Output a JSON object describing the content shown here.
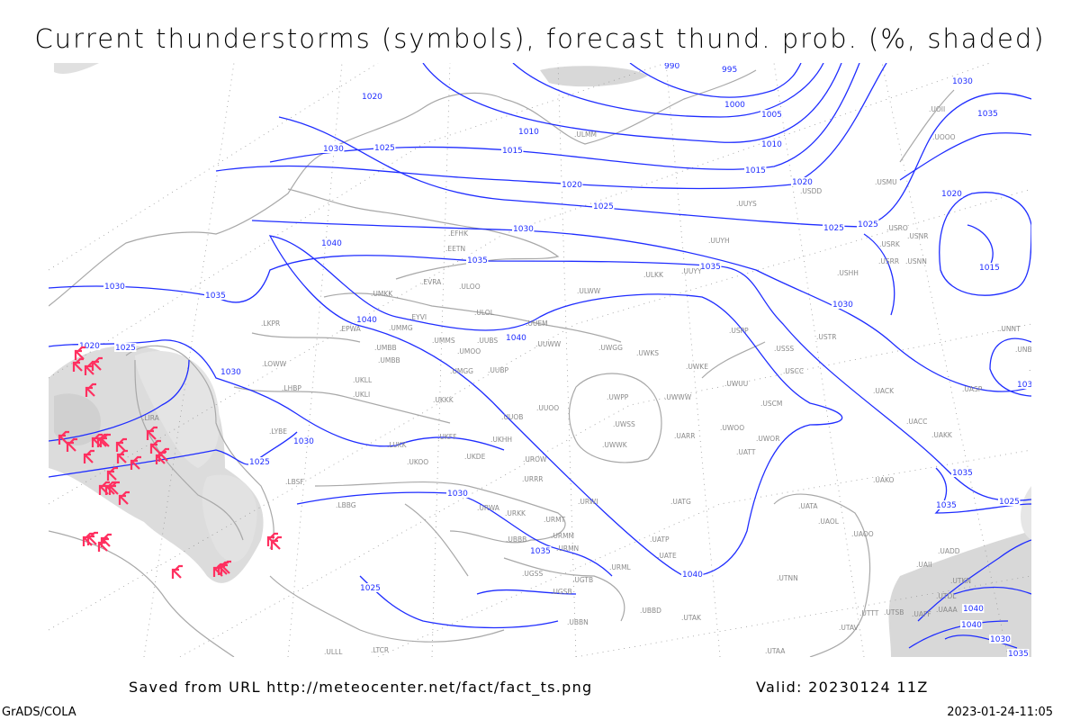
{
  "title": "Current thunderstorms (symbols), forecast thund. prob. (%, shaded)",
  "footer": {
    "saved_from": "Saved from URL http://meteocenter.net/fact/fact_ts.png",
    "valid": "Valid: 20230124 11Z",
    "software": "GrADS/COLA",
    "timestamp": "2023-01-24-11:05"
  },
  "colors": {
    "isobars": "#1f2dff",
    "coastlines": "#a8a8a8",
    "thunderstorm_symbols": "#ff3060",
    "probability_shading": "#d8d8d8"
  },
  "storm_symbol_icon": "thunderstorm-icon",
  "isobar_labels": [
    "990",
    "995",
    "1000",
    "1005",
    "1010",
    "1010",
    "1015",
    "1015",
    "1020",
    "1020",
    "1020",
    "1025",
    "1025",
    "1025",
    "1025",
    "1030",
    "1030",
    "1030",
    "1030",
    "1035",
    "1035",
    "1035",
    "1040",
    "1040",
    "1040",
    "1040",
    "1020",
    "1025",
    "1030",
    "1030",
    "1025",
    "1030",
    "1035",
    "1025",
    "1020",
    "1015",
    "1035",
    "1030",
    "1025",
    "1035",
    "1030",
    "1035",
    "1040",
    "1040",
    "1030",
    "1035"
  ],
  "stations": [
    "EFHK",
    "EETN",
    "EVRA",
    "ULOO",
    "UMKK",
    "EPWA",
    "LKPR",
    "UMMG",
    "EYVI",
    "UMBB",
    "UMMS",
    "UMOO",
    "ULOL",
    "UUEM",
    "UUBS",
    "UUWW",
    "LOWW",
    "LHBP",
    "UKLL",
    "UKLI",
    "UMGG",
    "UUBP",
    "UKKK",
    "LIRA",
    "LYBE",
    "LUKK",
    "UKOO",
    "UKFF",
    "UKDE",
    "UKHH",
    "UUOO",
    "UUOB",
    "URRR",
    "UROW",
    "URWA",
    "LBSF",
    "LBBG",
    "URKK",
    "URMT",
    "URMM",
    "URMN",
    "URWI",
    "UBBB",
    "UGSS",
    "UGSB",
    "UGTB",
    "UBBN",
    "URML",
    "UBBD",
    "UTAK",
    "UATE",
    "UATG",
    "UATP",
    "UUYY",
    "ULKK",
    "ULWW",
    "UWGG",
    "UWKS",
    "UWKE",
    "UWUU",
    "UWWW",
    "UWPP",
    "UWSS",
    "UWWK",
    "UARR",
    "UATT",
    "UWOO",
    "UWOR",
    "USCM",
    "USCC",
    "USSS",
    "USTR",
    "USPP",
    "USNN",
    "USRR",
    "USRK",
    "USNR",
    "USRO",
    "USMU",
    "USDD",
    "USHH",
    "UUYH",
    "UUYS",
    "ULMM",
    "UMBB",
    "UACC",
    "UAKK",
    "UACK",
    "UASP",
    "UAKO",
    "UATA",
    "UAOL",
    "UAOO",
    "UTNN",
    "UTAV",
    "UTTT",
    "UTKN",
    "UAII",
    "UADD",
    "UAFF",
    "UTSB",
    "UTAA",
    "UNBB",
    "UNNT",
    "UNBG",
    "ULLL",
    "UOII",
    "UOOO",
    "UTDL",
    "UAAA",
    "LTCR"
  ]
}
